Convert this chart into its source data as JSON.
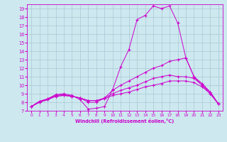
{
  "xlabel": "Windchill (Refroidissement éolien,°C)",
  "bg_color": "#cde8ef",
  "line_color": "#cc00cc",
  "grid_color": "#aac8d4",
  "xlim": [
    -0.5,
    23.5
  ],
  "ylim": [
    7,
    19.5
  ],
  "xticks": [
    0,
    1,
    2,
    3,
    4,
    5,
    6,
    7,
    8,
    9,
    10,
    11,
    12,
    13,
    14,
    15,
    16,
    17,
    18,
    19,
    20,
    21,
    22,
    23
  ],
  "yticks": [
    7,
    8,
    9,
    10,
    11,
    12,
    13,
    14,
    15,
    16,
    17,
    18,
    19
  ],
  "curves": [
    [
      7.5,
      8.1,
      8.4,
      8.9,
      9.0,
      8.8,
      8.3,
      7.2,
      7.3,
      7.5,
      9.5,
      12.2,
      14.2,
      17.7,
      18.2,
      19.3,
      19.0,
      19.3,
      17.3,
      13.2,
      11.0,
      10.2,
      9.2,
      7.8
    ],
    [
      7.5,
      8.1,
      8.4,
      8.8,
      8.9,
      8.7,
      8.5,
      8.0,
      8.0,
      8.5,
      9.4,
      10.0,
      10.5,
      11.0,
      11.5,
      12.0,
      12.3,
      12.8,
      13.0,
      13.2,
      11.0,
      10.0,
      9.2,
      7.8
    ],
    [
      7.5,
      8.0,
      8.3,
      8.7,
      8.8,
      8.7,
      8.5,
      8.2,
      8.2,
      8.5,
      9.0,
      9.4,
      9.7,
      10.0,
      10.4,
      10.8,
      11.0,
      11.2,
      11.0,
      11.0,
      10.8,
      10.0,
      9.0,
      7.8
    ],
    [
      7.5,
      8.0,
      8.3,
      8.7,
      8.8,
      8.7,
      8.5,
      8.2,
      8.2,
      8.4,
      8.8,
      9.0,
      9.2,
      9.5,
      9.8,
      10.0,
      10.2,
      10.5,
      10.5,
      10.5,
      10.3,
      9.8,
      9.0,
      7.8
    ]
  ]
}
